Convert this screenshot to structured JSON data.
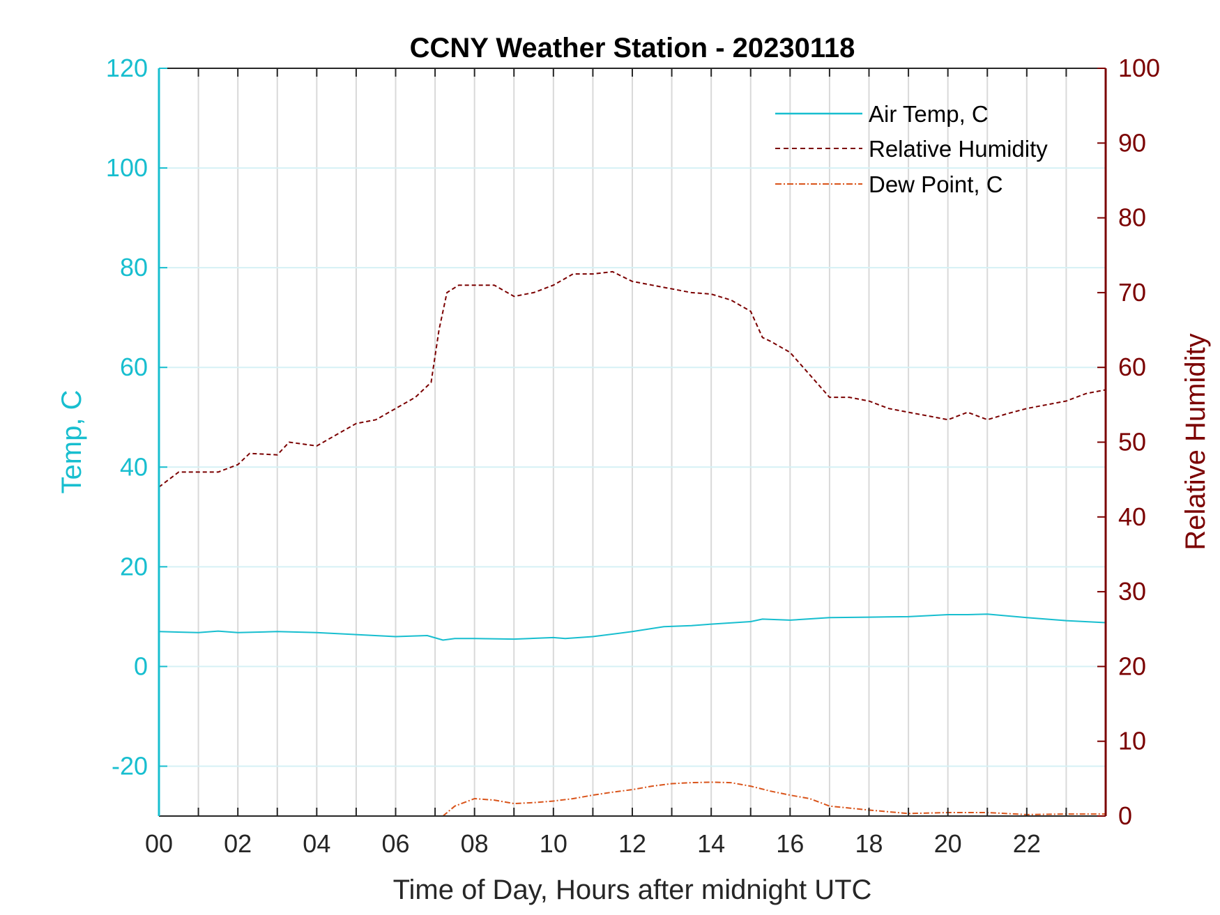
{
  "chart_data": {
    "type": "line",
    "title": "CCNY Weather Station - 20230118",
    "xlabel": "Time of Day, Hours after midnight UTC",
    "ylabel_left": "Temp, C",
    "ylabel_right": "Relative Humidity",
    "xlim": [
      0,
      24
    ],
    "ylim_left": [
      -30,
      120
    ],
    "ylim_right": [
      0,
      100
    ],
    "x_ticks": [
      0,
      2,
      4,
      6,
      8,
      10,
      12,
      14,
      16,
      18,
      20,
      22
    ],
    "x_tick_labels": [
      "00",
      "02",
      "04",
      "06",
      "08",
      "10",
      "12",
      "14",
      "16",
      "18",
      "20",
      "22"
    ],
    "y_ticks_left": [
      -20,
      0,
      20,
      40,
      60,
      80,
      100,
      120
    ],
    "y_tick_labels_left": [
      "-20",
      "0",
      "20",
      "40",
      "60",
      "80",
      "100",
      "120"
    ],
    "y_ticks_right": [
      0,
      10,
      20,
      30,
      40,
      50,
      60,
      70,
      80,
      90,
      100
    ],
    "y_tick_labels_right": [
      "0",
      "10",
      "20",
      "30",
      "40",
      "50",
      "60",
      "70",
      "80",
      "90",
      "100"
    ],
    "grid": {
      "x": true,
      "y": true
    },
    "legend": {
      "position": "top-right"
    },
    "colors": {
      "left_axis": "#17BECF",
      "right_axis": "#7B0000"
    },
    "series": [
      {
        "name": "Air Temp, C",
        "axis": "left",
        "color": "#17BECF",
        "style": "solid",
        "x": [
          0,
          1,
          1.5,
          2,
          3,
          4,
          5,
          6,
          6.8,
          7.2,
          7.5,
          8,
          9,
          10,
          10.3,
          11,
          12,
          12.8,
          13.5,
          14,
          15,
          15.3,
          16,
          17,
          18,
          19,
          20,
          20.5,
          21,
          22,
          23,
          24
        ],
        "y": [
          7,
          6.8,
          7.1,
          6.8,
          7,
          6.8,
          6.4,
          6,
          6.2,
          5.3,
          5.6,
          5.6,
          5.5,
          5.8,
          5.6,
          6,
          7,
          8,
          8.2,
          8.5,
          9,
          9.5,
          9.3,
          9.8,
          9.9,
          10,
          10.4,
          10.4,
          10.5,
          9.8,
          9.2,
          8.8
        ]
      },
      {
        "name": "Relative Humidity",
        "axis": "right",
        "color": "#7B0000",
        "style": "dashed",
        "x": [
          0,
          0.5,
          1,
          1.5,
          2,
          2.3,
          3,
          3.3,
          4,
          4.5,
          5,
          5.5,
          6,
          6.5,
          6.9,
          7.1,
          7.3,
          7.6,
          8,
          8.5,
          9,
          9.5,
          10,
          10.5,
          11,
          11.5,
          12,
          12.5,
          13,
          13.5,
          14,
          14.5,
          15,
          15.3,
          15.5,
          16,
          16.5,
          17,
          17.5,
          18,
          18.5,
          19,
          19.5,
          20,
          20.5,
          21,
          21.5,
          22,
          22.5,
          23,
          23.5,
          24
        ],
        "y": [
          44,
          46,
          46,
          46,
          47,
          48.5,
          48.3,
          50,
          49.5,
          51,
          52.5,
          53,
          54.5,
          56,
          58,
          65,
          70,
          71,
          71,
          71,
          69.5,
          70,
          71,
          72.5,
          72.5,
          72.8,
          71.5,
          71,
          70.5,
          70,
          69.8,
          69,
          67.5,
          64,
          63.5,
          62,
          59,
          56,
          56,
          55.5,
          54.5,
          54,
          53.5,
          53,
          54,
          53,
          53.8,
          54.5,
          55,
          55.5,
          56.5,
          57
        ]
      },
      {
        "name": "Dew Point, C",
        "axis": "left",
        "color": "#D95319",
        "style": "dashdot",
        "x": [
          7.2,
          7.5,
          8,
          8.5,
          9,
          9.5,
          10,
          10.5,
          11,
          11.5,
          12,
          12.5,
          13,
          13.5,
          14,
          14.5,
          15,
          15.5,
          16,
          16.5,
          17,
          18,
          19,
          20,
          21,
          22,
          23,
          24
        ],
        "y": [
          -30,
          -28,
          -26.5,
          -26.8,
          -27.5,
          -27.3,
          -27,
          -26.5,
          -25.8,
          -25.2,
          -24.7,
          -24,
          -23.5,
          -23.3,
          -23.2,
          -23.3,
          -24,
          -25,
          -25.8,
          -26.5,
          -28,
          -28.8,
          -29.5,
          -29.3,
          -29.3,
          -29.7,
          -29.6,
          -29.6
        ]
      }
    ]
  }
}
